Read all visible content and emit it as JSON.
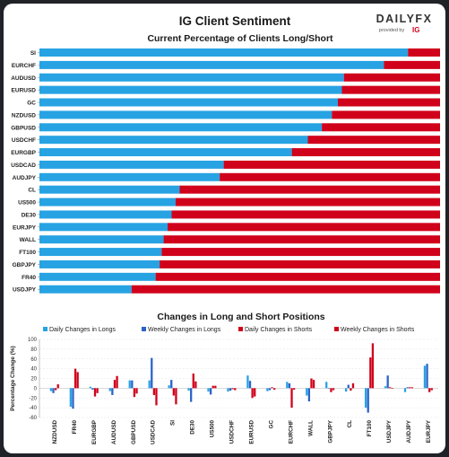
{
  "header": {
    "title": "IG Client Sentiment",
    "logo_text": "DAILYFX",
    "logo_sub": "provided by",
    "logo_ig": "IG"
  },
  "colors": {
    "long": "#27a3e3",
    "short": "#d0021b",
    "weekly_long": "#2c63c9",
    "weekly_short": "#d0021b",
    "background_outer": "#1f2226",
    "card": "#ffffff"
  },
  "chart_data": [
    {
      "type": "bar",
      "orientation": "horizontal-stacked",
      "title": "Current Percentage of Clients Long/Short",
      "categories": [
        "SI",
        "EURCHF",
        "AUDUSD",
        "EURUSD",
        "GC",
        "NZDUSD",
        "GBPUSD",
        "USDCHF",
        "EURGBP",
        "USDCAD",
        "AUDJPY",
        "CL",
        "US500",
        "DE30",
        "EURJPY",
        "WALL",
        "FT100",
        "GBPJPY",
        "FR40",
        "USDJPY"
      ],
      "series": [
        {
          "values": [
            92,
            86,
            76,
            75.5,
            74.5,
            73,
            70.5,
            67,
            63,
            46,
            45,
            35,
            34,
            33,
            32,
            31,
            30.5,
            30,
            29,
            23
          ]
        },
        {
          "values": [
            8,
            14,
            24,
            24.5,
            25.5,
            27,
            29.5,
            33,
            37,
            54,
            55,
            65,
            66,
            67,
            68,
            69,
            69.5,
            70,
            71,
            77
          ]
        }
      ],
      "xlim": [
        0,
        100
      ]
    },
    {
      "type": "bar",
      "title": "Changes in Long and Short Positions",
      "ylabel": "Percentage Change (%)",
      "ylim": [
        -60,
        100
      ],
      "yticks": [
        -60,
        -40,
        -20,
        0,
        20,
        40,
        60,
        80,
        100
      ],
      "categories": [
        "NZDUSD",
        "FR40",
        "EURGBP",
        "AUDUSD",
        "GBPUSD",
        "USDCAD",
        "SI",
        "DE30",
        "US500",
        "USDCHF",
        "EURUSD",
        "GC",
        "EURCHF",
        "WALL",
        "GBPJPY",
        "CL",
        "FT100",
        "USDJPY",
        "AUDJPY",
        "EURJPY"
      ],
      "series": [
        {
          "name": "Daily Changes in Longs",
          "values": [
            -6,
            -38,
            3,
            -6,
            16,
            16,
            6,
            -5,
            -7,
            -7,
            26,
            -6,
            13,
            -15,
            13,
            -7,
            -40,
            4,
            -8,
            46
          ]
        },
        {
          "name": "Weekly Changes in Longs",
          "values": [
            -10,
            -42,
            -3,
            -14,
            16,
            62,
            17,
            -28,
            -13,
            -5,
            15,
            -4,
            10,
            -27,
            -1,
            7,
            -50,
            26,
            2,
            50
          ]
        },
        {
          "name": "Daily Changes in Shorts",
          "values": [
            -4,
            40,
            -17,
            17,
            -18,
            -14,
            -15,
            30,
            5,
            -2,
            -20,
            2,
            -40,
            20,
            -8,
            -5,
            63,
            2,
            2,
            -8
          ]
        },
        {
          "name": "Weekly Changes in Shorts",
          "values": [
            8,
            33,
            -10,
            25,
            -11,
            -35,
            -33,
            14,
            5,
            -4,
            -17,
            -3,
            -3,
            17,
            -4,
            10,
            92,
            -1,
            2,
            -4
          ]
        }
      ],
      "legend_position": "top"
    }
  ]
}
